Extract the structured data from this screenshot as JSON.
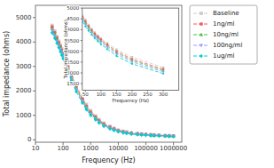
{
  "chart_data": [
    {
      "type": "line",
      "xlabel": "Frequency (Hz)",
      "ylabel": "Total impedance (ohms)",
      "log": "x",
      "grid": false,
      "legend": "right",
      "x": [
        40,
        50,
        60,
        70,
        80,
        90,
        100,
        120,
        150,
        200,
        300,
        500,
        700,
        1000,
        1500,
        2000,
        3000,
        5000,
        7000,
        10000,
        15000,
        20000,
        30000,
        50000,
        70000,
        100000,
        150000,
        200000,
        300000,
        500000,
        700000,
        1000000
      ],
      "xlim": [
        10,
        2000000
      ],
      "xticks": [
        10,
        100,
        1000,
        10000,
        100000,
        1000000
      ],
      "ylim": [
        -100,
        5500
      ],
      "yticks": [
        0,
        1000,
        2000,
        3000,
        4000,
        5000
      ],
      "series": [
        {
          "name": "Baseline",
          "color": "#cccccc",
          "marker": "square",
          "line_style": "dashed",
          "values": [
            4680,
            4450,
            4220,
            4030,
            3870,
            3720,
            3600,
            3380,
            3080,
            2730,
            2250,
            1750,
            1450,
            1190,
            980,
            830,
            680,
            550,
            470,
            400,
            350,
            320,
            285,
            255,
            240,
            225,
            210,
            200,
            190,
            175,
            168,
            160
          ]
        },
        {
          "name": "1ng/ml",
          "color": "#ff5555",
          "marker": "circle",
          "line_style": "dashed",
          "values": [
            4620,
            4390,
            4170,
            3980,
            3820,
            3670,
            3540,
            3310,
            3000,
            2640,
            2170,
            1670,
            1380,
            1130,
            930,
            790,
            650,
            520,
            445,
            380,
            330,
            305,
            272,
            245,
            230,
            218,
            202,
            192,
            183,
            170,
            163,
            155
          ]
        },
        {
          "name": "10ng/ml",
          "color": "#44bb44",
          "marker": "triangle-up",
          "line_style": "dashed",
          "values": [
            4550,
            4320,
            4110,
            3920,
            3760,
            3610,
            3480,
            3250,
            2940,
            2580,
            2110,
            1620,
            1340,
            1090,
            900,
            760,
            620,
            498,
            428,
            365,
            315,
            292,
            260,
            234,
            220,
            208,
            193,
            183,
            174,
            162,
            155,
            148
          ]
        },
        {
          "name": "100ng/ml",
          "color": "#9999ff",
          "marker": "triangle-down",
          "line_style": "dashed",
          "values": [
            4480,
            4250,
            4040,
            3860,
            3700,
            3550,
            3420,
            3190,
            2870,
            2510,
            2050,
            1570,
            1290,
            1050,
            860,
            725,
            590,
            475,
            408,
            348,
            300,
            278,
            248,
            223,
            210,
            198,
            184,
            175,
            166,
            154,
            148,
            141
          ]
        },
        {
          "name": "1ug/ml",
          "color": "#00cccc",
          "marker": "diamond",
          "line_style": "dashed",
          "values": [
            4380,
            4160,
            3960,
            3770,
            3610,
            3460,
            3330,
            3100,
            2780,
            2420,
            1970,
            1510,
            1240,
            1005,
            820,
            690,
            558,
            448,
            383,
            328,
            282,
            262,
            234,
            210,
            198,
            187,
            174,
            165,
            157,
            145,
            139,
            133
          ]
        }
      ]
    },
    {
      "type": "line",
      "xlabel": "Frequency (Hz)",
      "ylabel": "Total impedance (ohms)",
      "grid": false,
      "x": [
        40,
        50,
        60,
        70,
        80,
        90,
        100,
        120,
        150,
        200,
        300
      ],
      "xlim": [
        40,
        350
      ],
      "xticks": [
        50,
        100,
        150,
        200,
        250,
        300
      ],
      "ylim": [
        1200,
        5000
      ],
      "yticks": [
        1500,
        2000,
        2500,
        3000,
        3500,
        4000,
        4500,
        5000
      ],
      "series": [
        {
          "color": "#cccccc",
          "marker": "square",
          "line_style": "dashed",
          "values": [
            4680,
            4450,
            4220,
            4030,
            3870,
            3720,
            3600,
            3380,
            3080,
            2730,
            2250
          ]
        },
        {
          "color": "#ff5555",
          "marker": "circle",
          "line_style": "dashed",
          "values": [
            4620,
            4390,
            4170,
            3980,
            3820,
            3670,
            3540,
            3310,
            3000,
            2640,
            2170
          ]
        },
        {
          "color": "#44bb44",
          "marker": "triangle-up",
          "line_style": "dashed",
          "values": [
            4550,
            4320,
            4110,
            3920,
            3760,
            3610,
            3480,
            3250,
            2940,
            2580,
            2110
          ]
        },
        {
          "color": "#9999ff",
          "marker": "triangle-down",
          "line_style": "dashed",
          "values": [
            4480,
            4250,
            4040,
            3860,
            3700,
            3550,
            3420,
            3190,
            2870,
            2510,
            2050
          ]
        },
        {
          "color": "#00cccc",
          "marker": "diamond",
          "line_style": "dashed",
          "values": [
            4380,
            4160,
            3960,
            3770,
            3610,
            3460,
            3330,
            3100,
            2780,
            2420,
            1970
          ]
        }
      ]
    }
  ]
}
